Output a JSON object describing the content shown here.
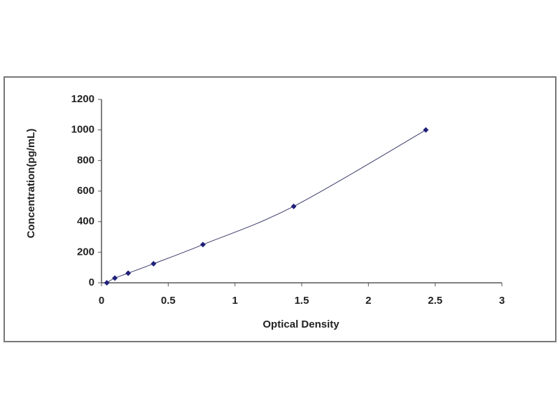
{
  "chart_data": {
    "type": "scatter",
    "x_label": "Optical Density",
    "y_label": "Concentration(pg/mL)",
    "x": [
      0.04,
      0.1,
      0.2,
      0.39,
      0.76,
      1.44,
      2.43
    ],
    "values": [
      0,
      31,
      63,
      125,
      250,
      500,
      1000
    ],
    "color": "#1f1f7a",
    "line_color": "#3a3a6a",
    "xlim": [
      0,
      3
    ],
    "xticks": [
      0,
      0.5,
      1,
      1.5,
      2,
      2.5,
      3
    ],
    "ylim": [
      0,
      1200
    ],
    "yticks": [
      0,
      200,
      400,
      600,
      800,
      1000,
      1200
    ],
    "grid": false
  }
}
